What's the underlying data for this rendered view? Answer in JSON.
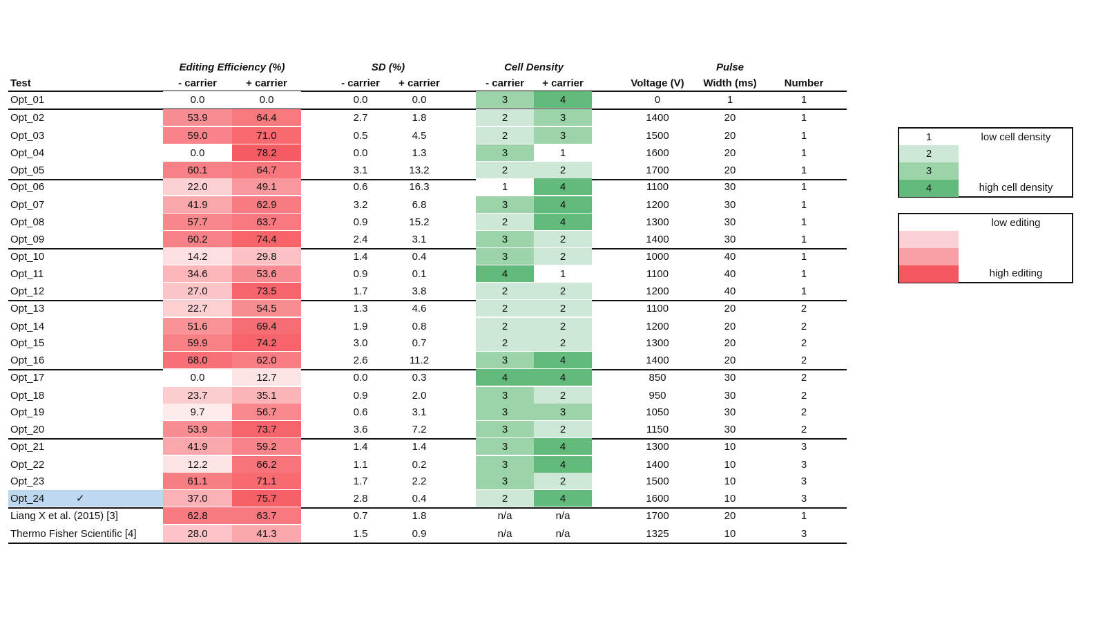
{
  "header": {
    "group_editing": "Editing Efficiency (%)",
    "group_sd": "SD (%)",
    "group_cell_density": "Cell Density",
    "group_pulse": "Pulse",
    "test": "Test",
    "minus_carrier": "- carrier",
    "plus_carrier": "+ carrier",
    "voltage": "Voltage (V)",
    "width": "Width (ms)",
    "number": "Number"
  },
  "rows": [
    {
      "test": "Opt_01",
      "ee_minus": "0.0",
      "ee_plus": "0.0",
      "sd_minus": "0.0",
      "sd_plus": "0.0",
      "cd_minus": "3",
      "cd_plus": "4",
      "voltage": "0",
      "width": "1",
      "number": "1"
    },
    {
      "test": "Opt_02",
      "ee_minus": "53.9",
      "ee_plus": "64.4",
      "sd_minus": "2.7",
      "sd_plus": "1.8",
      "cd_minus": "2",
      "cd_plus": "3",
      "voltage": "1400",
      "width": "20",
      "number": "1"
    },
    {
      "test": "Opt_03",
      "ee_minus": "59.0",
      "ee_plus": "71.0",
      "sd_minus": "0.5",
      "sd_plus": "4.5",
      "cd_minus": "2",
      "cd_plus": "3",
      "voltage": "1500",
      "width": "20",
      "number": "1"
    },
    {
      "test": "Opt_04",
      "ee_minus": "0.0",
      "ee_plus": "78.2",
      "sd_minus": "0.0",
      "sd_plus": "1.3",
      "cd_minus": "3",
      "cd_plus": "1",
      "voltage": "1600",
      "width": "20",
      "number": "1"
    },
    {
      "test": "Opt_05",
      "ee_minus": "60.1",
      "ee_plus": "64.7",
      "sd_minus": "3.1",
      "sd_plus": "13.2",
      "cd_minus": "2",
      "cd_plus": "2",
      "voltage": "1700",
      "width": "20",
      "number": "1"
    },
    {
      "test": "Opt_06",
      "ee_minus": "22.0",
      "ee_plus": "49.1",
      "sd_minus": "0.6",
      "sd_plus": "16.3",
      "cd_minus": "1",
      "cd_plus": "4",
      "voltage": "1100",
      "width": "30",
      "number": "1"
    },
    {
      "test": "Opt_07",
      "ee_minus": "41.9",
      "ee_plus": "62.9",
      "sd_minus": "3.2",
      "sd_plus": "6.8",
      "cd_minus": "3",
      "cd_plus": "4",
      "voltage": "1200",
      "width": "30",
      "number": "1"
    },
    {
      "test": "Opt_08",
      "ee_minus": "57.7",
      "ee_plus": "63.7",
      "sd_minus": "0.9",
      "sd_plus": "15.2",
      "cd_minus": "2",
      "cd_plus": "4",
      "voltage": "1300",
      "width": "30",
      "number": "1"
    },
    {
      "test": "Opt_09",
      "ee_minus": "60.2",
      "ee_plus": "74.4",
      "sd_minus": "2.4",
      "sd_plus": "3.1",
      "cd_minus": "3",
      "cd_plus": "2",
      "voltage": "1400",
      "width": "30",
      "number": "1"
    },
    {
      "test": "Opt_10",
      "ee_minus": "14.2",
      "ee_plus": "29.8",
      "sd_minus": "1.4",
      "sd_plus": "0.4",
      "cd_minus": "3",
      "cd_plus": "2",
      "voltage": "1000",
      "width": "40",
      "number": "1"
    },
    {
      "test": "Opt_11",
      "ee_minus": "34.6",
      "ee_plus": "53.6",
      "sd_minus": "0.9",
      "sd_plus": "0.1",
      "cd_minus": "4",
      "cd_plus": "1",
      "voltage": "1100",
      "width": "40",
      "number": "1"
    },
    {
      "test": "Opt_12",
      "ee_minus": "27.0",
      "ee_plus": "73.5",
      "sd_minus": "1.7",
      "sd_plus": "3.8",
      "cd_minus": "2",
      "cd_plus": "2",
      "voltage": "1200",
      "width": "40",
      "number": "1"
    },
    {
      "test": "Opt_13",
      "ee_minus": "22.7",
      "ee_plus": "54.5",
      "sd_minus": "1.3",
      "sd_plus": "4.6",
      "cd_minus": "2",
      "cd_plus": "2",
      "voltage": "1100",
      "width": "20",
      "number": "2"
    },
    {
      "test": "Opt_14",
      "ee_minus": "51.6",
      "ee_plus": "69.4",
      "sd_minus": "1.9",
      "sd_plus": "0.8",
      "cd_minus": "2",
      "cd_plus": "2",
      "voltage": "1200",
      "width": "20",
      "number": "2"
    },
    {
      "test": "Opt_15",
      "ee_minus": "59.9",
      "ee_plus": "74.2",
      "sd_minus": "3.0",
      "sd_plus": "0.7",
      "cd_minus": "2",
      "cd_plus": "2",
      "voltage": "1300",
      "width": "20",
      "number": "2"
    },
    {
      "test": "Opt_16",
      "ee_minus": "68.0",
      "ee_plus": "62.0",
      "sd_minus": "2.6",
      "sd_plus": "11.2",
      "cd_minus": "3",
      "cd_plus": "4",
      "voltage": "1400",
      "width": "20",
      "number": "2"
    },
    {
      "test": "Opt_17",
      "ee_minus": "0.0",
      "ee_plus": "12.7",
      "sd_minus": "0.0",
      "sd_plus": "0.3",
      "cd_minus": "4",
      "cd_plus": "4",
      "voltage": "850",
      "width": "30",
      "number": "2"
    },
    {
      "test": "Opt_18",
      "ee_minus": "23.7",
      "ee_plus": "35.1",
      "sd_minus": "0.9",
      "sd_plus": "2.0",
      "cd_minus": "3",
      "cd_plus": "2",
      "voltage": "950",
      "width": "30",
      "number": "2"
    },
    {
      "test": "Opt_19",
      "ee_minus": "9.7",
      "ee_plus": "56.7",
      "sd_minus": "0.6",
      "sd_plus": "3.1",
      "cd_minus": "3",
      "cd_plus": "3",
      "voltage": "1050",
      "width": "30",
      "number": "2"
    },
    {
      "test": "Opt_20",
      "ee_minus": "53.9",
      "ee_plus": "73.7",
      "sd_minus": "3.6",
      "sd_plus": "7.2",
      "cd_minus": "3",
      "cd_plus": "2",
      "voltage": "1150",
      "width": "30",
      "number": "2"
    },
    {
      "test": "Opt_21",
      "ee_minus": "41.9",
      "ee_plus": "59.2",
      "sd_minus": "1.4",
      "sd_plus": "1.4",
      "cd_minus": "3",
      "cd_plus": "4",
      "voltage": "1300",
      "width": "10",
      "number": "3"
    },
    {
      "test": "Opt_22",
      "ee_minus": "12.2",
      "ee_plus": "66.2",
      "sd_minus": "1.1",
      "sd_plus": "0.2",
      "cd_minus": "3",
      "cd_plus": "4",
      "voltage": "1400",
      "width": "10",
      "number": "3"
    },
    {
      "test": "Opt_23",
      "ee_minus": "61.1",
      "ee_plus": "71.1",
      "sd_minus": "1.7",
      "sd_plus": "2.2",
      "cd_minus": "3",
      "cd_plus": "2",
      "voltage": "1500",
      "width": "10",
      "number": "3"
    },
    {
      "test": "Opt_24",
      "ee_minus": "37.0",
      "ee_plus": "75.7",
      "sd_minus": "2.8",
      "sd_plus": "0.4",
      "cd_minus": "2",
      "cd_plus": "4",
      "voltage": "1600",
      "width": "10",
      "number": "3",
      "selected": true,
      "check": "✓"
    },
    {
      "test": "Liang X et al. (2015) [3]",
      "ee_minus": "62.8",
      "ee_plus": "63.7",
      "sd_minus": "0.7",
      "sd_plus": "1.8",
      "cd_minus": "n/a",
      "cd_plus": "n/a",
      "voltage": "1700",
      "width": "20",
      "number": "1"
    },
    {
      "test": "Thermo Fisher Scientific [4]",
      "ee_minus": "28.0",
      "ee_plus": "41.3",
      "sd_minus": "1.5",
      "sd_plus": "0.9",
      "cd_minus": "n/a",
      "cd_plus": "n/a",
      "voltage": "1325",
      "width": "10",
      "number": "3"
    }
  ],
  "legend_density": [
    {
      "value": "1",
      "label": "low cell density",
      "color": "#ffffff"
    },
    {
      "value": "2",
      "label": "",
      "color": "#cde8d6"
    },
    {
      "value": "3",
      "label": "",
      "color": "#9cd3a8"
    },
    {
      "value": "4",
      "label": "high cell density",
      "color": "#63bb7b"
    }
  ],
  "legend_editing": [
    {
      "label": "low editing",
      "color": "#ffffff"
    },
    {
      "label": "",
      "color": "#fbd1d5"
    },
    {
      "label": "",
      "color": "#f8a0a6"
    },
    {
      "label": "high editing",
      "color": "#f5575e"
    }
  ],
  "colors": {
    "density": {
      "1": "#ffffff",
      "2": "#cde8d6",
      "3": "#9cd3a8",
      "4": "#63bb7b"
    },
    "editing_low": "#ffffff",
    "editing_high": "#f5575e",
    "selected_row": "#bdd7ee",
    "rule": "#111111"
  }
}
